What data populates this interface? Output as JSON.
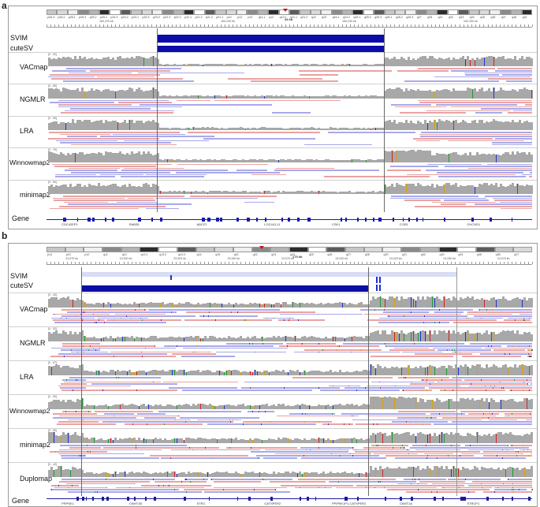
{
  "panels": [
    {
      "letter": "a",
      "scale": "44 kb",
      "cytobands": [
        "p26.3",
        "p26.2",
        "p26.1",
        "p25.3",
        "p25.2",
        "p25.1",
        "p24.3",
        "p24.2",
        "p24.1",
        "p23.3",
        "p23.2",
        "p22.3",
        "p22.2",
        "p22.1",
        "p21.3",
        "p21.2",
        "p21.1",
        "p14",
        "p13",
        "p12",
        "q11.1",
        "q12",
        "q13.1",
        "q21.1",
        "q21.2",
        "q22",
        "q23",
        "q24.1",
        "q24.2",
        "q25.1",
        "q25.2",
        "q25.3",
        "q26.1",
        "q26.2",
        "q26.3",
        "q27",
        "q28",
        "q31",
        "q32",
        "q33",
        "q34",
        "q35",
        "q36",
        "q37",
        "q38",
        "q41"
      ],
      "ruler": [
        "160,220 kb",
        "160,230 kb",
        "160,240 kb",
        "160,250 kb"
      ],
      "svLabels": [
        "SVIM",
        "cuteSV"
      ],
      "tracks": [
        "VACmap",
        "NGMLR",
        "LRA",
        "Winnowmap2",
        "minimap2"
      ],
      "coverageScales": [
        "[0 - 52]",
        "[0 - 69]",
        "[0 - 59]",
        "[0 - 79]",
        "[0 - 50]"
      ],
      "geneLabel": "Gene",
      "genes": [
        "CDC42EP1",
        "RAB35",
        "ABCF2",
        "LOC441,11",
        "CSK1",
        "COR1",
        "CHCHD1"
      ]
    },
    {
      "letter": "b",
      "scale": "175 kb",
      "cytobands": [
        "p14",
        "p13",
        "p12",
        "q11",
        "q12",
        "q13.1",
        "q13.2",
        "q13.3",
        "q14",
        "q15",
        "q21",
        "q22",
        "q23",
        "q24",
        "q25",
        "q26",
        "q27",
        "q28",
        "q29",
        "q31",
        "q32",
        "q33",
        "q34",
        "q35",
        "q36",
        "q37"
      ],
      "ruler": [
        "23,875 kb",
        "23,900 kb",
        "23,925 kb",
        "23,950 kb",
        "23,975 kb",
        "24,000 kb",
        "24,025 kb",
        "24,050 kb",
        "24,075 kb"
      ],
      "svLabels": [
        "SVIM",
        "cuteSV"
      ],
      "tracks": [
        "VACmap",
        "NGMLR",
        "LRA",
        "Winnowmap2",
        "minimap2",
        "Duplomap"
      ],
      "coverageScales": [
        "[0 - 40]",
        "[0 - 52]",
        "[0 - 57]",
        "[0 - 50]",
        "[0 - 50]",
        "[0 - 42]"
      ],
      "geneLabel": "Gene",
      "genes": [
        "PRPSK1",
        "CKMT1B",
        "STRC",
        "CATSPER2",
        "PPIP5K1P1-CATSPER2",
        "CKMT1A",
        "STRCP1"
      ]
    }
  ],
  "colors": {
    "sv": "#0c0ca8",
    "coverage": "#a8a8a8",
    "forwardRead": "#e9a3a3",
    "reverseRead": "#a9a9ea",
    "gene": "#1a1aa6",
    "centromere": "#d41111"
  }
}
